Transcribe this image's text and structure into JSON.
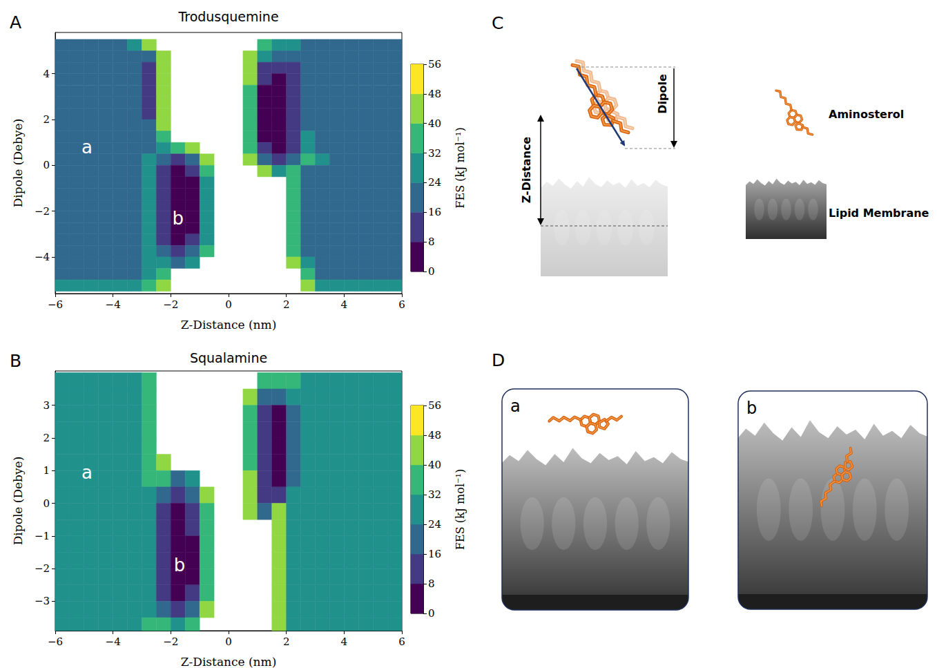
{
  "chart_data": [
    {
      "type": "heatmap",
      "panel": "A",
      "title": "Trodusquemine",
      "x_label": "Z-Distance (nm)",
      "y_label": "Dipole (Debye)",
      "xlim": [
        -6,
        6
      ],
      "xticks": [
        {
          "value": -6,
          "label": "−6"
        },
        {
          "value": -4,
          "label": "−4"
        },
        {
          "value": -2,
          "label": "−2"
        },
        0,
        2,
        4,
        6
      ],
      "ylim": [
        -5.6,
        5.8
      ],
      "yticks": [
        {
          "value": -4,
          "label": "−4"
        },
        {
          "value": -2,
          "label": "−2"
        },
        0,
        2,
        4
      ],
      "x": [
        -5.75,
        -5.25,
        -4.75,
        -4.25,
        -3.75,
        -3.25,
        -2.75,
        -2.25,
        -1.75,
        -1.25,
        -0.75,
        -0.25,
        0.25,
        0.75,
        1.25,
        1.75,
        2.25,
        2.75,
        3.25,
        3.75,
        4.25,
        4.75,
        5.25,
        5.75
      ],
      "y": [
        5.25,
        4.75,
        4.25,
        3.75,
        3.25,
        2.75,
        2.25,
        1.75,
        1.25,
        0.75,
        0.25,
        -0.25,
        -0.75,
        -1.25,
        -1.75,
        -2.25,
        -2.75,
        -3.25,
        -3.75,
        -4.25,
        -4.75,
        -5.25
      ],
      "cells": [
        [
          20,
          20,
          20,
          20,
          20,
          28,
          44,
          null,
          null,
          null,
          null,
          null,
          null,
          null,
          36,
          28,
          28,
          20,
          20,
          20,
          20,
          20,
          20,
          20
        ],
        [
          20,
          20,
          20,
          20,
          20,
          20,
          20,
          44,
          null,
          null,
          null,
          null,
          null,
          44,
          28,
          20,
          20,
          20,
          20,
          20,
          20,
          20,
          20,
          20
        ],
        [
          20,
          20,
          20,
          20,
          20,
          20,
          12,
          44,
          null,
          null,
          null,
          null,
          null,
          44,
          12,
          12,
          12,
          20,
          20,
          20,
          20,
          20,
          20,
          20
        ],
        [
          20,
          20,
          20,
          20,
          20,
          20,
          12,
          44,
          null,
          null,
          null,
          null,
          null,
          44,
          12,
          4,
          12,
          20,
          20,
          20,
          20,
          20,
          20,
          20
        ],
        [
          20,
          20,
          20,
          20,
          20,
          20,
          12,
          44,
          null,
          null,
          null,
          null,
          null,
          36,
          4,
          4,
          12,
          20,
          20,
          20,
          20,
          20,
          20,
          20
        ],
        [
          20,
          20,
          20,
          20,
          20,
          20,
          12,
          44,
          null,
          null,
          null,
          null,
          null,
          36,
          4,
          4,
          12,
          20,
          20,
          20,
          20,
          20,
          20,
          20
        ],
        [
          20,
          20,
          20,
          20,
          20,
          20,
          12,
          44,
          null,
          null,
          null,
          null,
          null,
          36,
          4,
          4,
          12,
          20,
          20,
          20,
          20,
          20,
          20,
          20
        ],
        [
          20,
          20,
          20,
          20,
          20,
          20,
          20,
          44,
          null,
          null,
          null,
          null,
          null,
          36,
          4,
          4,
          12,
          20,
          20,
          20,
          20,
          20,
          20,
          20
        ],
        [
          20,
          20,
          20,
          20,
          20,
          20,
          20,
          36,
          null,
          null,
          null,
          null,
          null,
          36,
          4,
          4,
          12,
          28,
          20,
          20,
          20,
          20,
          20,
          20
        ],
        [
          20,
          20,
          20,
          20,
          20,
          20,
          20,
          28,
          36,
          44,
          null,
          null,
          null,
          36,
          12,
          4,
          12,
          28,
          20,
          20,
          20,
          20,
          20,
          20
        ],
        [
          20,
          20,
          20,
          20,
          20,
          20,
          28,
          20,
          12,
          20,
          44,
          null,
          null,
          44,
          20,
          12,
          20,
          36,
          28,
          20,
          20,
          20,
          20,
          20
        ],
        [
          20,
          20,
          20,
          20,
          20,
          20,
          28,
          12,
          4,
          12,
          36,
          null,
          null,
          null,
          44,
          28,
          36,
          20,
          20,
          20,
          20,
          20,
          20,
          20
        ],
        [
          20,
          20,
          20,
          20,
          20,
          20,
          28,
          12,
          4,
          4,
          28,
          null,
          null,
          null,
          null,
          null,
          36,
          20,
          20,
          20,
          20,
          20,
          20,
          20
        ],
        [
          20,
          20,
          20,
          20,
          20,
          20,
          28,
          12,
          4,
          4,
          28,
          null,
          null,
          null,
          null,
          null,
          36,
          20,
          20,
          20,
          20,
          20,
          20,
          20
        ],
        [
          20,
          20,
          20,
          20,
          20,
          20,
          28,
          12,
          4,
          4,
          28,
          null,
          null,
          null,
          null,
          null,
          36,
          20,
          20,
          20,
          20,
          20,
          20,
          20
        ],
        [
          20,
          20,
          20,
          20,
          20,
          20,
          28,
          12,
          4,
          4,
          28,
          null,
          null,
          null,
          null,
          null,
          36,
          20,
          20,
          20,
          20,
          20,
          20,
          20
        ],
        [
          20,
          20,
          20,
          20,
          20,
          20,
          28,
          12,
          4,
          4,
          28,
          null,
          null,
          null,
          null,
          null,
          36,
          20,
          20,
          20,
          20,
          20,
          20,
          20
        ],
        [
          20,
          20,
          20,
          20,
          20,
          20,
          28,
          12,
          4,
          12,
          28,
          null,
          null,
          null,
          null,
          null,
          36,
          20,
          20,
          20,
          20,
          20,
          20,
          20
        ],
        [
          20,
          20,
          20,
          20,
          20,
          20,
          28,
          20,
          12,
          20,
          36,
          null,
          null,
          null,
          null,
          null,
          36,
          20,
          20,
          20,
          20,
          20,
          20,
          20
        ],
        [
          20,
          20,
          20,
          20,
          20,
          20,
          28,
          28,
          20,
          28,
          null,
          null,
          null,
          null,
          null,
          null,
          44,
          28,
          20,
          20,
          20,
          20,
          20,
          20
        ],
        [
          20,
          20,
          20,
          20,
          20,
          20,
          28,
          36,
          null,
          null,
          null,
          null,
          null,
          null,
          null,
          null,
          null,
          36,
          20,
          20,
          20,
          20,
          20,
          20
        ],
        [
          28,
          28,
          28,
          28,
          28,
          28,
          36,
          44,
          null,
          null,
          null,
          null,
          null,
          null,
          null,
          null,
          null,
          44,
          28,
          28,
          28,
          28,
          28,
          28
        ]
      ],
      "colorbar": {
        "label": "FES (kJ mol⁻¹)",
        "levels": [
          0,
          8,
          16,
          24,
          32,
          40,
          48,
          56
        ],
        "ticks": [
          0,
          8,
          16,
          24,
          32,
          40,
          48,
          56
        ],
        "colors": [
          "#440154",
          "#443983",
          "#31688e",
          "#21918c",
          "#35b779",
          "#90d743",
          "#fde725"
        ]
      },
      "annotations": [
        {
          "text": "a",
          "x": -4.9,
          "y": 0.8
        },
        {
          "text": "b",
          "x": -1.75,
          "y": -2.3
        }
      ]
    },
    {
      "type": "heatmap",
      "panel": "B",
      "title": "Squalamine",
      "x_label": "Z-Distance (nm)",
      "y_label": "Dipole (Debye)",
      "xlim": [
        -6,
        6
      ],
      "xticks": [
        {
          "value": -6,
          "label": "−6"
        },
        {
          "value": -4,
          "label": "−4"
        },
        {
          "value": -2,
          "label": "−2"
        },
        0,
        2,
        4,
        6
      ],
      "ylim": [
        -3.9,
        4.05
      ],
      "yticks": [
        {
          "value": -3,
          "label": "−3"
        },
        {
          "value": -2,
          "label": "−2"
        },
        {
          "value": -1,
          "label": "−1"
        },
        0,
        1,
        2,
        3
      ],
      "x": [
        -5.75,
        -5.25,
        -4.75,
        -4.25,
        -3.75,
        -3.25,
        -2.75,
        -2.25,
        -1.75,
        -1.25,
        -0.75,
        -0.25,
        0.25,
        0.75,
        1.25,
        1.75,
        2.25,
        2.75,
        3.25,
        3.75,
        4.25,
        4.75,
        5.25,
        5.75
      ],
      "y": [
        3.75,
        3.25,
        2.75,
        2.25,
        1.75,
        1.25,
        0.75,
        0.25,
        -0.25,
        -0.75,
        -1.25,
        -1.75,
        -2.25,
        -2.75,
        -3.25,
        -3.75
      ],
      "cells": [
        [
          28,
          28,
          28,
          28,
          28,
          28,
          36,
          null,
          null,
          null,
          null,
          null,
          null,
          null,
          36,
          36,
          36,
          28,
          28,
          28,
          28,
          28,
          28,
          28
        ],
        [
          28,
          28,
          28,
          28,
          28,
          28,
          36,
          null,
          null,
          null,
          null,
          null,
          null,
          44,
          20,
          20,
          28,
          28,
          28,
          28,
          28,
          28,
          28,
          28
        ],
        [
          28,
          28,
          28,
          28,
          28,
          28,
          36,
          null,
          null,
          null,
          null,
          null,
          null,
          36,
          12,
          4,
          20,
          28,
          28,
          28,
          28,
          28,
          28,
          28
        ],
        [
          28,
          28,
          28,
          28,
          28,
          28,
          36,
          null,
          null,
          null,
          null,
          null,
          null,
          36,
          12,
          4,
          20,
          28,
          28,
          28,
          28,
          28,
          28,
          28
        ],
        [
          28,
          28,
          28,
          28,
          28,
          28,
          36,
          null,
          null,
          null,
          null,
          null,
          null,
          36,
          12,
          4,
          20,
          28,
          28,
          28,
          28,
          28,
          28,
          28
        ],
        [
          28,
          28,
          28,
          28,
          28,
          28,
          36,
          44,
          null,
          null,
          null,
          null,
          null,
          36,
          12,
          4,
          20,
          28,
          28,
          28,
          28,
          28,
          28,
          28
        ],
        [
          28,
          28,
          28,
          28,
          28,
          28,
          36,
          36,
          20,
          28,
          null,
          null,
          null,
          44,
          12,
          4,
          20,
          28,
          28,
          28,
          28,
          28,
          28,
          28
        ],
        [
          28,
          28,
          28,
          28,
          28,
          28,
          28,
          20,
          12,
          20,
          44,
          null,
          null,
          44,
          12,
          12,
          28,
          28,
          28,
          28,
          28,
          28,
          28,
          28
        ],
        [
          28,
          28,
          28,
          28,
          28,
          28,
          28,
          12,
          4,
          12,
          36,
          null,
          null,
          44,
          20,
          44,
          28,
          28,
          28,
          28,
          28,
          28,
          28,
          28
        ],
        [
          28,
          28,
          28,
          28,
          28,
          28,
          28,
          12,
          4,
          12,
          36,
          null,
          null,
          null,
          null,
          44,
          28,
          28,
          28,
          28,
          28,
          28,
          28,
          28
        ],
        [
          28,
          28,
          28,
          28,
          28,
          28,
          28,
          12,
          4,
          4,
          36,
          null,
          null,
          null,
          null,
          44,
          28,
          28,
          28,
          28,
          28,
          28,
          28,
          28
        ],
        [
          28,
          28,
          28,
          28,
          28,
          28,
          28,
          12,
          4,
          4,
          36,
          null,
          null,
          null,
          null,
          44,
          28,
          28,
          28,
          28,
          28,
          28,
          28,
          28
        ],
        [
          28,
          28,
          28,
          28,
          28,
          28,
          28,
          12,
          4,
          4,
          36,
          null,
          null,
          null,
          null,
          44,
          28,
          28,
          28,
          28,
          28,
          28,
          28,
          28
        ],
        [
          28,
          28,
          28,
          28,
          28,
          28,
          28,
          12,
          4,
          12,
          36,
          null,
          null,
          null,
          null,
          44,
          28,
          28,
          28,
          28,
          28,
          28,
          28,
          28
        ],
        [
          28,
          28,
          28,
          28,
          28,
          28,
          28,
          20,
          12,
          20,
          44,
          null,
          null,
          null,
          null,
          44,
          28,
          28,
          28,
          28,
          28,
          28,
          28,
          28
        ],
        [
          28,
          28,
          28,
          28,
          28,
          28,
          36,
          36,
          28,
          36,
          null,
          null,
          null,
          null,
          null,
          44,
          28,
          28,
          28,
          28,
          28,
          28,
          28,
          28
        ]
      ],
      "colorbar": {
        "label": "FES (kJ mol⁻¹)",
        "levels": [
          0,
          8,
          16,
          24,
          32,
          40,
          48,
          56
        ],
        "ticks": [
          0,
          8,
          16,
          24,
          32,
          40,
          48,
          56
        ],
        "colors": [
          "#440154",
          "#443983",
          "#31688e",
          "#21918c",
          "#35b779",
          "#90d743",
          "#fde725"
        ]
      },
      "annotations": [
        {
          "text": "a",
          "x": -4.9,
          "y": 0.95
        },
        {
          "text": "b",
          "x": -1.7,
          "y": -1.9
        }
      ]
    }
  ],
  "diagram": {
    "C": {
      "letter": "C",
      "labels": {
        "dipole": "Dipole",
        "z_distance": "Z-Distance",
        "molecule": "Aminosterol",
        "membrane": "Lipid Membrane"
      }
    },
    "D": {
      "letter": "D",
      "states": [
        "a",
        "b"
      ]
    }
  }
}
